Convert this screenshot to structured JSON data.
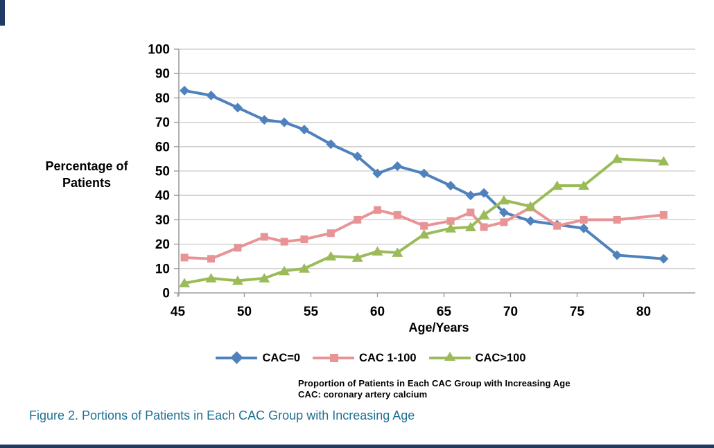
{
  "page": {
    "note_line1": "Proportion of Patients in Each CAC Group with Increasing Age",
    "note_line2": "CAC: coronary artery calcium",
    "figure_caption": "Figure 2. Portions of Patients in Each CAC Group with Increasing Age"
  },
  "chart_data": {
    "type": "line",
    "xlabel": "Age/Years",
    "ylabel": "Percentage of Patients",
    "ylabel_lines": [
      "Percentage of",
      "Patients"
    ],
    "xlim": [
      45,
      84
    ],
    "ylim": [
      0,
      100
    ],
    "xticks": [
      45,
      50,
      55,
      60,
      65,
      70,
      75,
      80
    ],
    "yticks": [
      0,
      10,
      20,
      30,
      40,
      50,
      60,
      70,
      80,
      90,
      100
    ],
    "grid": true,
    "legend_position": "bottom",
    "x": [
      45.5,
      47.5,
      49.5,
      51.5,
      53,
      54.5,
      56.5,
      58.5,
      60,
      61.5,
      63.5,
      65.5,
      67,
      68,
      69.5,
      71.5,
      73.5,
      75.5,
      78,
      81.5
    ],
    "series": [
      {
        "name": "CAC=0",
        "marker": "diamond",
        "color": "#4f81bd",
        "values": [
          83,
          81,
          76,
          71,
          70,
          67,
          61,
          56,
          49,
          52,
          49,
          44,
          40,
          41,
          33,
          29.5,
          28,
          26.5,
          15.5,
          14
        ]
      },
      {
        "name": "CAC 1-100",
        "marker": "square",
        "color": "#e89496",
        "values": [
          14.5,
          14,
          18.5,
          23,
          21,
          22,
          24.5,
          30,
          34,
          32,
          27.5,
          29.5,
          33,
          27,
          29,
          35,
          27.5,
          30,
          30,
          32
        ]
      },
      {
        "name": "CAC>100",
        "marker": "triangle",
        "color": "#9bbb59",
        "values": [
          4,
          6,
          5,
          6,
          9,
          10,
          15,
          14.5,
          17,
          16.5,
          24,
          26.5,
          27,
          32,
          38,
          35.5,
          44,
          44,
          55,
          54
        ]
      }
    ]
  },
  "style": {
    "accent_navy": "#203a63",
    "caption_color": "#1d7092",
    "grid_color": "#c9c9c9",
    "axis_color": "#9e9e9e"
  }
}
